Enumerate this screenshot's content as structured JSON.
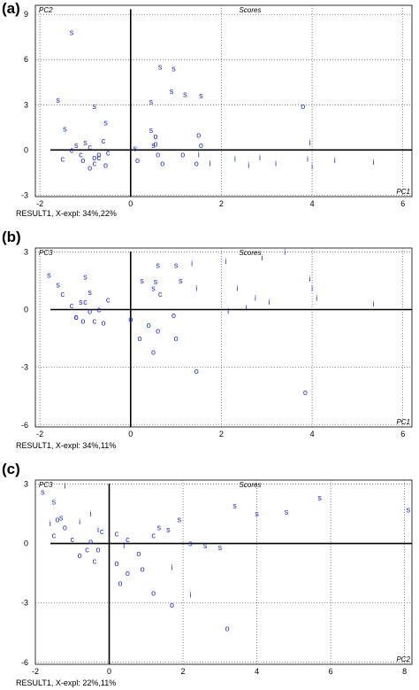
{
  "chart_data": [
    {
      "type": "scatter",
      "panel_label": "(a)",
      "title": "Scores",
      "ylabel": "PC2",
      "xlabel": "PC1",
      "caption": "RESULT1, X-expl: 34%,22%",
      "xlim": [
        -2.1,
        6.2
      ],
      "ylim": [
        -3.1,
        9.6
      ],
      "xticks": [
        "-2",
        "0",
        "2",
        "4",
        "6"
      ],
      "yticks": [
        "-3",
        "0",
        "3",
        "6",
        "9"
      ],
      "xtick_values": [
        -2,
        0,
        2,
        4,
        6
      ],
      "ytick_values": [
        -3,
        0,
        3,
        6,
        9
      ],
      "grid": true,
      "point_color": "#1d2bd6",
      "markers": [
        {
          "label": "s",
          "x": -1.3,
          "y": 7.8
        },
        {
          "label": "s",
          "x": -1.6,
          "y": 3.3
        },
        {
          "label": "s",
          "x": -1.45,
          "y": 1.4
        },
        {
          "label": "s",
          "x": -0.8,
          "y": 2.9
        },
        {
          "label": "s",
          "x": -0.55,
          "y": 1.8
        },
        {
          "label": "s",
          "x": 0.65,
          "y": 5.5
        },
        {
          "label": "s",
          "x": 0.45,
          "y": 3.2
        },
        {
          "label": "s",
          "x": 0.95,
          "y": 5.4
        },
        {
          "label": "s",
          "x": 0.9,
          "y": 3.9
        },
        {
          "label": "s",
          "x": 1.2,
          "y": 3.7
        },
        {
          "label": "s",
          "x": 1.55,
          "y": 3.6
        },
        {
          "label": "s",
          "x": 0.45,
          "y": 1.3
        },
        {
          "label": "s",
          "x": 0.5,
          "y": 0.3
        },
        {
          "label": "s",
          "x": 0.1,
          "y": 0.1
        },
        {
          "label": "s",
          "x": -1.2,
          "y": 0.3
        },
        {
          "label": "s",
          "x": -1.0,
          "y": 0.5
        },
        {
          "label": "c",
          "x": -1.3,
          "y": 0.0
        },
        {
          "label": "c",
          "x": -1.1,
          "y": -0.3
        },
        {
          "label": "c",
          "x": -0.9,
          "y": 0.2
        },
        {
          "label": "c",
          "x": -0.7,
          "y": -0.5
        },
        {
          "label": "c",
          "x": -0.8,
          "y": -0.9
        },
        {
          "label": "c",
          "x": -0.6,
          "y": 0.6
        },
        {
          "label": "c",
          "x": -1.5,
          "y": -0.6
        },
        {
          "label": "c",
          "x": -0.5,
          "y": -0.2
        },
        {
          "label": "o",
          "x": -0.9,
          "y": -1.2
        },
        {
          "label": "o",
          "x": -0.8,
          "y": -0.5
        },
        {
          "label": "o",
          "x": -1.05,
          "y": -0.7
        },
        {
          "label": "o",
          "x": -0.7,
          "y": -0.3
        },
        {
          "label": "o",
          "x": 0.6,
          "y": -0.3
        },
        {
          "label": "o",
          "x": 0.7,
          "y": -0.9
        },
        {
          "label": "o",
          "x": 0.15,
          "y": -0.7
        },
        {
          "label": "o",
          "x": 0.55,
          "y": 0.4
        },
        {
          "label": "o",
          "x": 1.15,
          "y": -0.3
        },
        {
          "label": "o",
          "x": 1.55,
          "y": 0.3
        },
        {
          "label": "o",
          "x": 1.5,
          "y": 1.0
        },
        {
          "label": "o",
          "x": 1.45,
          "y": -0.9
        },
        {
          "label": "o",
          "x": 0.55,
          "y": 0.9
        },
        {
          "label": "o",
          "x": -0.55,
          "y": -1.0
        },
        {
          "label": "o",
          "x": 3.8,
          "y": 2.9
        },
        {
          "label": "i",
          "x": 1.5,
          "y": -0.3
        },
        {
          "label": "i",
          "x": 1.75,
          "y": -0.9
        },
        {
          "label": "i",
          "x": 2.3,
          "y": -0.6
        },
        {
          "label": "i",
          "x": 2.6,
          "y": -1.0
        },
        {
          "label": "i",
          "x": 2.85,
          "y": -0.5
        },
        {
          "label": "i",
          "x": 3.2,
          "y": -0.9
        },
        {
          "label": "i",
          "x": 3.9,
          "y": -0.6
        },
        {
          "label": "i",
          "x": 3.95,
          "y": 0.5
        },
        {
          "label": "i",
          "x": 5.35,
          "y": -0.8
        },
        {
          "label": "i",
          "x": 4.5,
          "y": -0.7
        },
        {
          "label": "i",
          "x": 4.0,
          "y": -1.1
        }
      ]
    },
    {
      "type": "scatter",
      "panel_label": "(b)",
      "title": "Scores",
      "ylabel": "PC3",
      "xlabel": "PC1",
      "caption": "RESULT1, X-expl: 34%,11%",
      "xlim": [
        -2.1,
        6.2
      ],
      "ylim": [
        -6.1,
        3.2
      ],
      "xticks": [
        "-2",
        "0",
        "2",
        "4",
        "6"
      ],
      "yticks": [
        "-6",
        "-3",
        "0",
        "3"
      ],
      "xtick_values": [
        -2,
        0,
        2,
        4,
        6
      ],
      "ytick_values": [
        -6,
        -3,
        0,
        3
      ],
      "grid": true,
      "point_color": "#1d2bd6",
      "markers": [
        {
          "label": "s",
          "x": -1.8,
          "y": 1.8
        },
        {
          "label": "s",
          "x": -1.6,
          "y": 1.3
        },
        {
          "label": "s",
          "x": -1.0,
          "y": 1.7
        },
        {
          "label": "s",
          "x": 0.5,
          "y": 1.1
        },
        {
          "label": "s",
          "x": 0.6,
          "y": 2.3
        },
        {
          "label": "s",
          "x": 0.25,
          "y": 1.5
        },
        {
          "label": "s",
          "x": 0.55,
          "y": 1.45
        },
        {
          "label": "s",
          "x": 1.0,
          "y": 2.3
        },
        {
          "label": "s",
          "x": 1.1,
          "y": 1.5
        },
        {
          "label": "s",
          "x": -1.1,
          "y": 0.4
        },
        {
          "label": "s",
          "x": -0.9,
          "y": 0.9
        },
        {
          "label": "c",
          "x": -1.5,
          "y": 0.8
        },
        {
          "label": "c",
          "x": -1.3,
          "y": 0.2
        },
        {
          "label": "c",
          "x": -1.0,
          "y": 0.4
        },
        {
          "label": "c",
          "x": -0.7,
          "y": 0.0
        },
        {
          "label": "c",
          "x": -0.5,
          "y": 0.5
        },
        {
          "label": "c",
          "x": -0.8,
          "y": -0.6
        },
        {
          "label": "c",
          "x": -1.2,
          "y": -0.4
        },
        {
          "label": "c",
          "x": 0.65,
          "y": 0.8
        },
        {
          "label": "o",
          "x": -1.2,
          "y": -0.4
        },
        {
          "label": "o",
          "x": -0.9,
          "y": -0.1
        },
        {
          "label": "o",
          "x": -1.05,
          "y": -0.6
        },
        {
          "label": "o",
          "x": -0.6,
          "y": -0.7
        },
        {
          "label": "o",
          "x": 0.0,
          "y": -0.5
        },
        {
          "label": "o",
          "x": 0.4,
          "y": -0.8
        },
        {
          "label": "o",
          "x": 0.6,
          "y": -1.1
        },
        {
          "label": "o",
          "x": 1.0,
          "y": -1.5
        },
        {
          "label": "o",
          "x": 0.2,
          "y": -1.5
        },
        {
          "label": "o",
          "x": 0.5,
          "y": -2.2
        },
        {
          "label": "o",
          "x": 1.45,
          "y": -3.2
        },
        {
          "label": "o",
          "x": 3.85,
          "y": -4.3
        },
        {
          "label": "o",
          "x": 0.95,
          "y": -0.3
        },
        {
          "label": "i",
          "x": 1.35,
          "y": 2.4
        },
        {
          "label": "i",
          "x": 1.45,
          "y": 1.1
        },
        {
          "label": "i",
          "x": 2.1,
          "y": 2.5
        },
        {
          "label": "i",
          "x": 2.35,
          "y": 1.1
        },
        {
          "label": "i",
          "x": 2.55,
          "y": 0.1
        },
        {
          "label": "i",
          "x": 2.75,
          "y": 0.6
        },
        {
          "label": "i",
          "x": 2.9,
          "y": 2.7
        },
        {
          "label": "i",
          "x": 3.05,
          "y": 0.4
        },
        {
          "label": "i",
          "x": 3.4,
          "y": 3.0
        },
        {
          "label": "i",
          "x": 3.95,
          "y": 1.6
        },
        {
          "label": "i",
          "x": 4.0,
          "y": 1.1
        },
        {
          "label": "i",
          "x": 4.1,
          "y": 0.6
        },
        {
          "label": "i",
          "x": 5.35,
          "y": 0.3
        },
        {
          "label": "i",
          "x": 2.15,
          "y": -0.1
        }
      ]
    },
    {
      "type": "scatter",
      "panel_label": "(c)",
      "title": "Scores",
      "ylabel": "PC3",
      "xlabel": "PC2",
      "caption": "RESULT1, X-expl: 22%,11%",
      "xlim": [
        -2.0,
        8.2
      ],
      "ylim": [
        -6.1,
        3.2
      ],
      "xticks": [
        "-2",
        "0",
        "2",
        "4",
        "6",
        "8"
      ],
      "yticks": [
        "-6",
        "-3",
        "0",
        "3"
      ],
      "xtick_values": [
        -2,
        0,
        2,
        4,
        6,
        8
      ],
      "ytick_values": [
        -6,
        -3,
        0,
        3
      ],
      "grid": true,
      "point_color": "#1d2bd6",
      "markers": [
        {
          "label": "s",
          "x": -1.8,
          "y": 2.6
        },
        {
          "label": "s",
          "x": -1.5,
          "y": 2.1
        },
        {
          "label": "s",
          "x": -1.3,
          "y": 1.3
        },
        {
          "label": "s",
          "x": 1.35,
          "y": 0.8
        },
        {
          "label": "s",
          "x": 1.6,
          "y": 0.7
        },
        {
          "label": "s",
          "x": 2.2,
          "y": 0.0
        },
        {
          "label": "s",
          "x": 2.6,
          "y": -0.1
        },
        {
          "label": "s",
          "x": 3.0,
          "y": -0.2
        },
        {
          "label": "s",
          "x": 3.4,
          "y": 1.9
        },
        {
          "label": "s",
          "x": 4.0,
          "y": 1.5
        },
        {
          "label": "s",
          "x": 4.8,
          "y": 1.6
        },
        {
          "label": "s",
          "x": 5.7,
          "y": 2.3
        },
        {
          "label": "s",
          "x": 8.1,
          "y": 1.7
        },
        {
          "label": "s",
          "x": 1.9,
          "y": 1.2
        },
        {
          "label": "c",
          "x": -1.5,
          "y": 0.4
        },
        {
          "label": "c",
          "x": -1.0,
          "y": 0.2
        },
        {
          "label": "c",
          "x": -0.6,
          "y": -0.3
        },
        {
          "label": "c",
          "x": -0.2,
          "y": 0.6
        },
        {
          "label": "c",
          "x": 0.2,
          "y": 0.5
        },
        {
          "label": "c",
          "x": 0.5,
          "y": 0.2
        },
        {
          "label": "c",
          "x": 1.2,
          "y": 0.4
        },
        {
          "label": "c",
          "x": -0.4,
          "y": -0.9
        },
        {
          "label": "o",
          "x": -1.2,
          "y": 0.8
        },
        {
          "label": "o",
          "x": -0.8,
          "y": -0.6
        },
        {
          "label": "o",
          "x": -0.5,
          "y": 0.1
        },
        {
          "label": "o",
          "x": -0.3,
          "y": -0.3
        },
        {
          "label": "o",
          "x": 0.2,
          "y": -1.0
        },
        {
          "label": "o",
          "x": 0.5,
          "y": -1.5
        },
        {
          "label": "o",
          "x": 0.3,
          "y": -2.0
        },
        {
          "label": "o",
          "x": 0.9,
          "y": -1.3
        },
        {
          "label": "o",
          "x": 1.2,
          "y": -2.5
        },
        {
          "label": "o",
          "x": 0.8,
          "y": -0.5
        },
        {
          "label": "o",
          "x": 1.7,
          "y": -3.1
        },
        {
          "label": "o",
          "x": 3.2,
          "y": -4.3
        },
        {
          "label": "o",
          "x": -1.4,
          "y": 1.2
        },
        {
          "label": "i",
          "x": -1.6,
          "y": 1.0
        },
        {
          "label": "i",
          "x": -0.8,
          "y": 1.1
        },
        {
          "label": "i",
          "x": -0.3,
          "y": 0.7
        },
        {
          "label": "i",
          "x": -0.5,
          "y": 1.5
        },
        {
          "label": "i",
          "x": 1.7,
          "y": -1.2
        },
        {
          "label": "i",
          "x": 2.2,
          "y": -2.6
        },
        {
          "label": "i",
          "x": -1.2,
          "y": 2.9
        },
        {
          "label": "i",
          "x": 0.4,
          "y": -0.1
        }
      ]
    }
  ]
}
